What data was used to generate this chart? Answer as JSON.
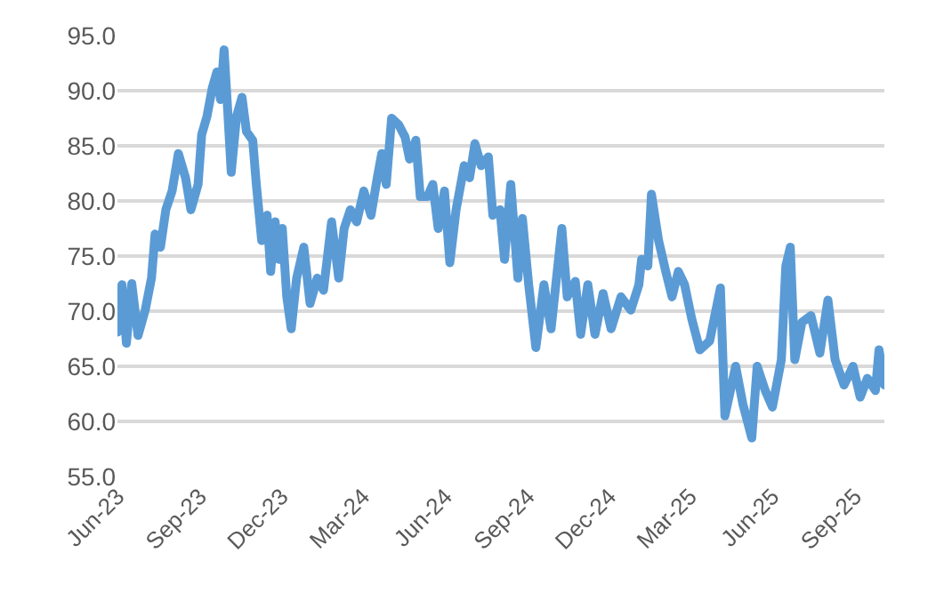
{
  "chart_data": {
    "type": "line",
    "grid": "y",
    "line_style": "solid",
    "marker": "none",
    "xlim": [
      "2023-06-01",
      "2025-10-04"
    ],
    "ylim": [
      55,
      95
    ],
    "yticks": [
      {
        "value": 55,
        "label": "55.0"
      },
      {
        "value": 60,
        "label": "60.0"
      },
      {
        "value": 65,
        "label": "65.0"
      },
      {
        "value": 70,
        "label": "70.0"
      },
      {
        "value": 75,
        "label": "75.0"
      },
      {
        "value": 80,
        "label": "80.0"
      },
      {
        "value": 85,
        "label": "85.0"
      },
      {
        "value": 90,
        "label": "90.0"
      },
      {
        "value": 95,
        "label": "95.0"
      }
    ],
    "xticks": [
      {
        "value": "2023-06-01",
        "label": "Jun-23"
      },
      {
        "value": "2023-09-01",
        "label": "Sep-23"
      },
      {
        "value": "2023-12-01",
        "label": "Dec-23"
      },
      {
        "value": "2024-03-01",
        "label": "Mar-24"
      },
      {
        "value": "2024-06-01",
        "label": "Jun-24"
      },
      {
        "value": "2024-09-01",
        "label": "Sep-24"
      },
      {
        "value": "2024-12-01",
        "label": "Dec-24"
      },
      {
        "value": "2025-03-01",
        "label": "Mar-25"
      },
      {
        "value": "2025-06-01",
        "label": "Jun-25"
      },
      {
        "value": "2025-09-01",
        "label": "Sep-25"
      }
    ],
    "series": [
      {
        "color": "#5b9bd5",
        "x": [
          "2023-06-01",
          "2023-06-06",
          "2023-06-11",
          "2023-06-17",
          "2023-06-24",
          "2023-07-02",
          "2023-07-09",
          "2023-07-13",
          "2023-07-19",
          "2023-07-25",
          "2023-08-01",
          "2023-08-08",
          "2023-08-16",
          "2023-08-22",
          "2023-08-30",
          "2023-09-03",
          "2023-09-09",
          "2023-09-15",
          "2023-09-20",
          "2023-09-24",
          "2023-09-28",
          "2023-10-02",
          "2023-10-06",
          "2023-10-12",
          "2023-10-18",
          "2023-10-23",
          "2023-10-30",
          "2023-11-03",
          "2023-11-09",
          "2023-11-15",
          "2023-11-19",
          "2023-11-24",
          "2023-11-28",
          "2023-12-02",
          "2023-12-07",
          "2023-12-12",
          "2023-12-18",
          "2023-12-26",
          "2024-01-02",
          "2024-01-10",
          "2024-01-17",
          "2024-01-26",
          "2024-02-03",
          "2024-02-09",
          "2024-02-16",
          "2024-02-23",
          "2024-03-02",
          "2024-03-10",
          "2024-03-17",
          "2024-03-22",
          "2024-03-27",
          "2024-04-02",
          "2024-04-10",
          "2024-04-17",
          "2024-04-22",
          "2024-04-29",
          "2024-05-04",
          "2024-05-12",
          "2024-05-18",
          "2024-05-24",
          "2024-05-31",
          "2024-06-06",
          "2024-06-13",
          "2024-06-22",
          "2024-06-28",
          "2024-07-04",
          "2024-07-11",
          "2024-07-19",
          "2024-07-24",
          "2024-08-01",
          "2024-08-06",
          "2024-08-13",
          "2024-08-21",
          "2024-08-26",
          "2024-09-02",
          "2024-09-10",
          "2024-09-19",
          "2024-09-27",
          "2024-10-09",
          "2024-10-15",
          "2024-10-24",
          "2024-10-30",
          "2024-11-07",
          "2024-11-15",
          "2024-11-24",
          "2024-12-03",
          "2024-12-14",
          "2024-12-25",
          "2025-01-03",
          "2025-01-06",
          "2025-01-13",
          "2025-01-17",
          "2025-01-25",
          "2025-02-02",
          "2025-02-09",
          "2025-02-16",
          "2025-02-23",
          "2025-03-03",
          "2025-03-12",
          "2025-03-23",
          "2025-04-04",
          "2025-04-09",
          "2025-04-21",
          "2025-04-29",
          "2025-05-09",
          "2025-05-15",
          "2025-05-24",
          "2025-06-01",
          "2025-06-11",
          "2025-06-16",
          "2025-06-21",
          "2025-06-26",
          "2025-07-04",
          "2025-07-14",
          "2025-07-24",
          "2025-08-02",
          "2025-08-10",
          "2025-08-20",
          "2025-08-30",
          "2025-09-07",
          "2025-09-15",
          "2025-09-24",
          "2025-09-28",
          "2025-10-04"
        ],
        "values": [
          68.1,
          72.4,
          67.1,
          72.5,
          67.8,
          70.1,
          73.0,
          77.0,
          75.8,
          79.2,
          80.9,
          84.3,
          82.1,
          79.2,
          81.5,
          86.0,
          87.7,
          90.3,
          91.7,
          89.2,
          93.7,
          88.3,
          82.6,
          87.7,
          89.4,
          86.3,
          85.5,
          81.5,
          76.4,
          78.7,
          73.6,
          78.1,
          74.7,
          77.5,
          71.3,
          68.4,
          73.0,
          75.8,
          70.7,
          73.0,
          71.9,
          78.1,
          73.0,
          77.5,
          79.2,
          78.1,
          80.9,
          78.7,
          82.1,
          84.3,
          81.5,
          87.5,
          86.9,
          85.8,
          83.8,
          85.5,
          80.4,
          80.4,
          81.5,
          77.5,
          80.9,
          74.4,
          79.2,
          83.2,
          82.1,
          85.2,
          83.2,
          84.0,
          78.7,
          79.2,
          74.7,
          81.5,
          73.0,
          78.4,
          72.4,
          66.7,
          72.4,
          68.4,
          77.5,
          71.3,
          72.7,
          67.9,
          72.4,
          67.9,
          71.6,
          68.4,
          71.3,
          70.1,
          72.4,
          74.7,
          74.1,
          80.6,
          76.4,
          73.6,
          71.3,
          73.6,
          72.4,
          69.3,
          66.5,
          67.3,
          72.1,
          60.5,
          65.0,
          61.6,
          58.5,
          65.0,
          62.8,
          61.3,
          65.6,
          74.1,
          75.8,
          65.6,
          69.0,
          69.6,
          66.2,
          71.0,
          65.6,
          63.3,
          65.0,
          62.2,
          63.9,
          62.8,
          66.5,
          63.3
        ]
      }
    ]
  }
}
